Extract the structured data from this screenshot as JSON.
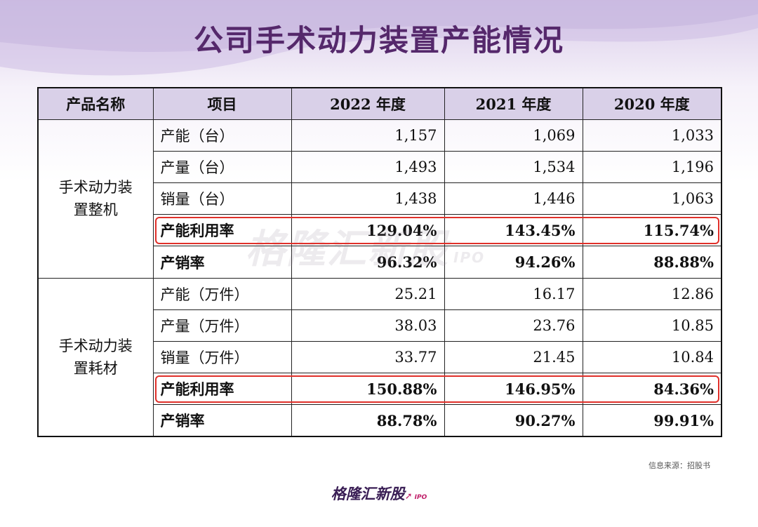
{
  "title": "公司手术动力装置产能情况",
  "watermark": {
    "text": "格隆汇新股",
    "sub": "IPO"
  },
  "source": "信息来源：招股书",
  "logo": {
    "text": "格隆汇新股",
    "sub": "IPO"
  },
  "colors": {
    "title": "#55286b",
    "header_bg": "#d9d0e8",
    "highlight": "#e0302a"
  },
  "chart_data": {
    "type": "table",
    "title": "公司手术动力装置产能情况",
    "columns": [
      "产品名称",
      "项目",
      "2022 年度",
      "2021 年度",
      "2020 年度"
    ],
    "groups": [
      {
        "product": "手术动力装置整机",
        "product_lines": [
          "手术动力装",
          "置整机"
        ],
        "rows": [
          {
            "item": "产能（台）",
            "values": [
              "1,157",
              "1,069",
              "1,033"
            ],
            "bold": false,
            "highlight": false
          },
          {
            "item": "产量（台）",
            "values": [
              "1,493",
              "1,534",
              "1,196"
            ],
            "bold": false,
            "highlight": false
          },
          {
            "item": "销量（台）",
            "values": [
              "1,438",
              "1,446",
              "1,063"
            ],
            "bold": false,
            "highlight": false
          },
          {
            "item": "产能利用率",
            "values": [
              "129.04%",
              "143.45%",
              "115.74%"
            ],
            "bold": true,
            "highlight": true
          },
          {
            "item": "产销率",
            "values": [
              "96.32%",
              "94.26%",
              "88.88%"
            ],
            "bold": true,
            "highlight": false
          }
        ]
      },
      {
        "product": "手术动力装置耗材",
        "product_lines": [
          "手术动力装",
          "置耗材"
        ],
        "rows": [
          {
            "item": "产能（万件）",
            "values": [
              "25.21",
              "16.17",
              "12.86"
            ],
            "bold": false,
            "highlight": false
          },
          {
            "item": "产量（万件）",
            "values": [
              "38.03",
              "23.76",
              "10.85"
            ],
            "bold": false,
            "highlight": false
          },
          {
            "item": "销量（万件）",
            "values": [
              "33.77",
              "21.45",
              "10.84"
            ],
            "bold": false,
            "highlight": false
          },
          {
            "item": "产能利用率",
            "values": [
              "150.88%",
              "146.95%",
              "84.36%"
            ],
            "bold": true,
            "highlight": true
          },
          {
            "item": "产销率",
            "values": [
              "88.78%",
              "90.27%",
              "99.91%"
            ],
            "bold": true,
            "highlight": false
          }
        ]
      }
    ]
  }
}
